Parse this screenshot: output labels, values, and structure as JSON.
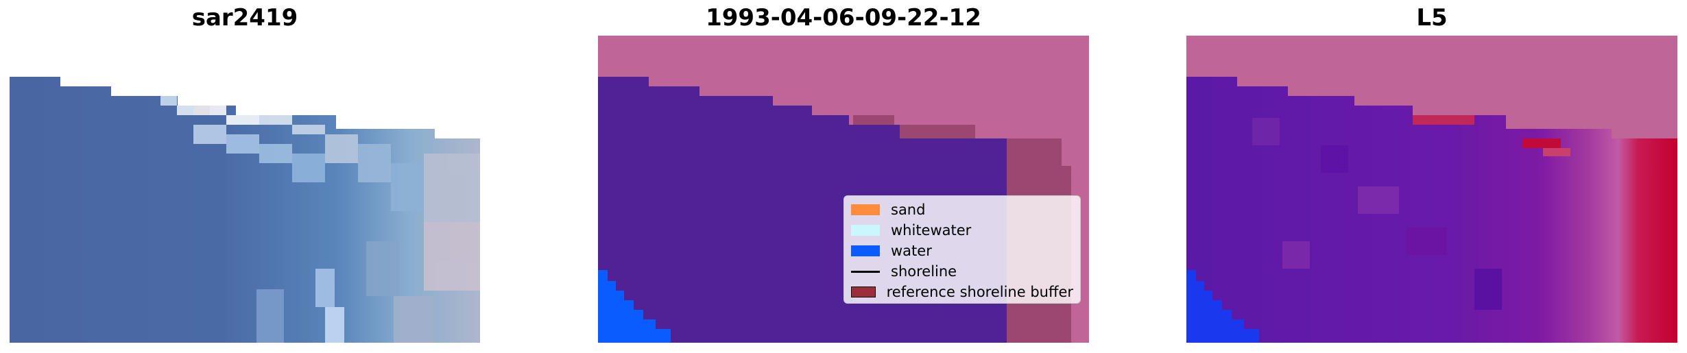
{
  "panels": [
    {
      "title": "sar2419"
    },
    {
      "title": "1993-04-06-09-22-12"
    },
    {
      "title": "L5"
    }
  ],
  "legend": {
    "items": [
      {
        "label": "sand",
        "color": "#ff8c3c",
        "kind": "patch"
      },
      {
        "label": "whitewater",
        "color": "#ccf6ff",
        "kind": "patch"
      },
      {
        "label": "water",
        "color": "#0a5cff",
        "kind": "patch"
      },
      {
        "label": "shoreline",
        "color": "#000000",
        "kind": "line"
      },
      {
        "label": "reference shoreline buffer",
        "color": "#9b2d3c",
        "kind": "patch"
      }
    ]
  },
  "colors": {
    "no_data": "#bf6597",
    "water_class": "#4f2396",
    "water_blue": "#0a5cff",
    "buffer": "#9b4772",
    "sea": "#4a67a2",
    "probability_low": "#6a12a8",
    "probability_high": "#c4002f"
  }
}
